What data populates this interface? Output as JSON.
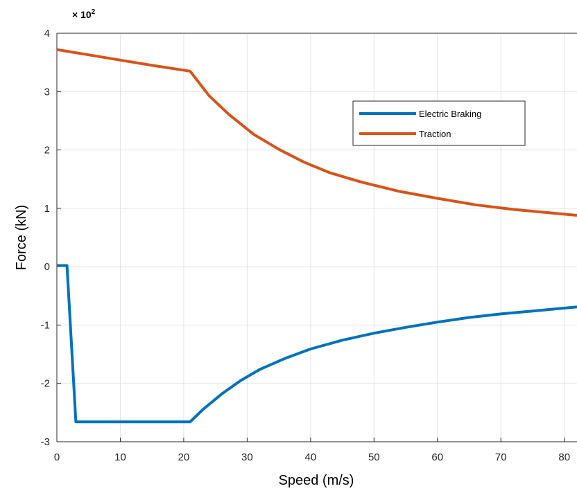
{
  "chart_data": {
    "type": "line",
    "title": "",
    "xlabel": "Speed (m/s)",
    "ylabel": "Force (kN)",
    "y_scale_label": "× 10",
    "y_scale_exponent": "2",
    "xlim": [
      0,
      82
    ],
    "ylim": [
      -3,
      4
    ],
    "x_ticks": [
      0,
      10,
      20,
      30,
      40,
      50,
      60,
      70,
      80
    ],
    "y_ticks": [
      -3,
      -2,
      -1,
      0,
      1,
      2,
      3,
      4
    ],
    "x_tick_labels": [
      "0",
      "10",
      "20",
      "30",
      "40",
      "50",
      "60",
      "70",
      "80"
    ],
    "y_tick_labels": [
      "-3",
      "-2",
      "-1",
      "0",
      "1",
      "2",
      "3",
      "4"
    ],
    "grid": true,
    "legend_position": "top-right",
    "series": [
      {
        "name": "Electric Braking",
        "color": "#0072BD",
        "points": [
          [
            0,
            0.02
          ],
          [
            1.6,
            0.02
          ],
          [
            3,
            -2.66
          ],
          [
            21,
            -2.66
          ],
          [
            23,
            -2.45
          ],
          [
            26,
            -2.18
          ],
          [
            29,
            -1.95
          ],
          [
            32,
            -1.76
          ],
          [
            36,
            -1.57
          ],
          [
            40,
            -1.41
          ],
          [
            45,
            -1.26
          ],
          [
            50,
            -1.14
          ],
          [
            55,
            -1.04
          ],
          [
            60,
            -0.95
          ],
          [
            65,
            -0.87
          ],
          [
            70,
            -0.81
          ],
          [
            75,
            -0.76
          ],
          [
            82,
            -0.69
          ]
        ]
      },
      {
        "name": "Traction",
        "color": "#D95319",
        "points": [
          [
            0,
            3.72
          ],
          [
            5,
            3.63
          ],
          [
            10,
            3.54
          ],
          [
            15,
            3.45
          ],
          [
            21,
            3.35
          ],
          [
            24,
            2.93
          ],
          [
            27,
            2.62
          ],
          [
            31,
            2.27
          ],
          [
            35,
            2.01
          ],
          [
            39,
            1.79
          ],
          [
            43,
            1.61
          ],
          [
            48,
            1.45
          ],
          [
            54,
            1.29
          ],
          [
            60,
            1.17
          ],
          [
            66,
            1.06
          ],
          [
            72,
            0.98
          ],
          [
            78,
            0.92
          ],
          [
            82,
            0.88
          ]
        ]
      }
    ]
  }
}
